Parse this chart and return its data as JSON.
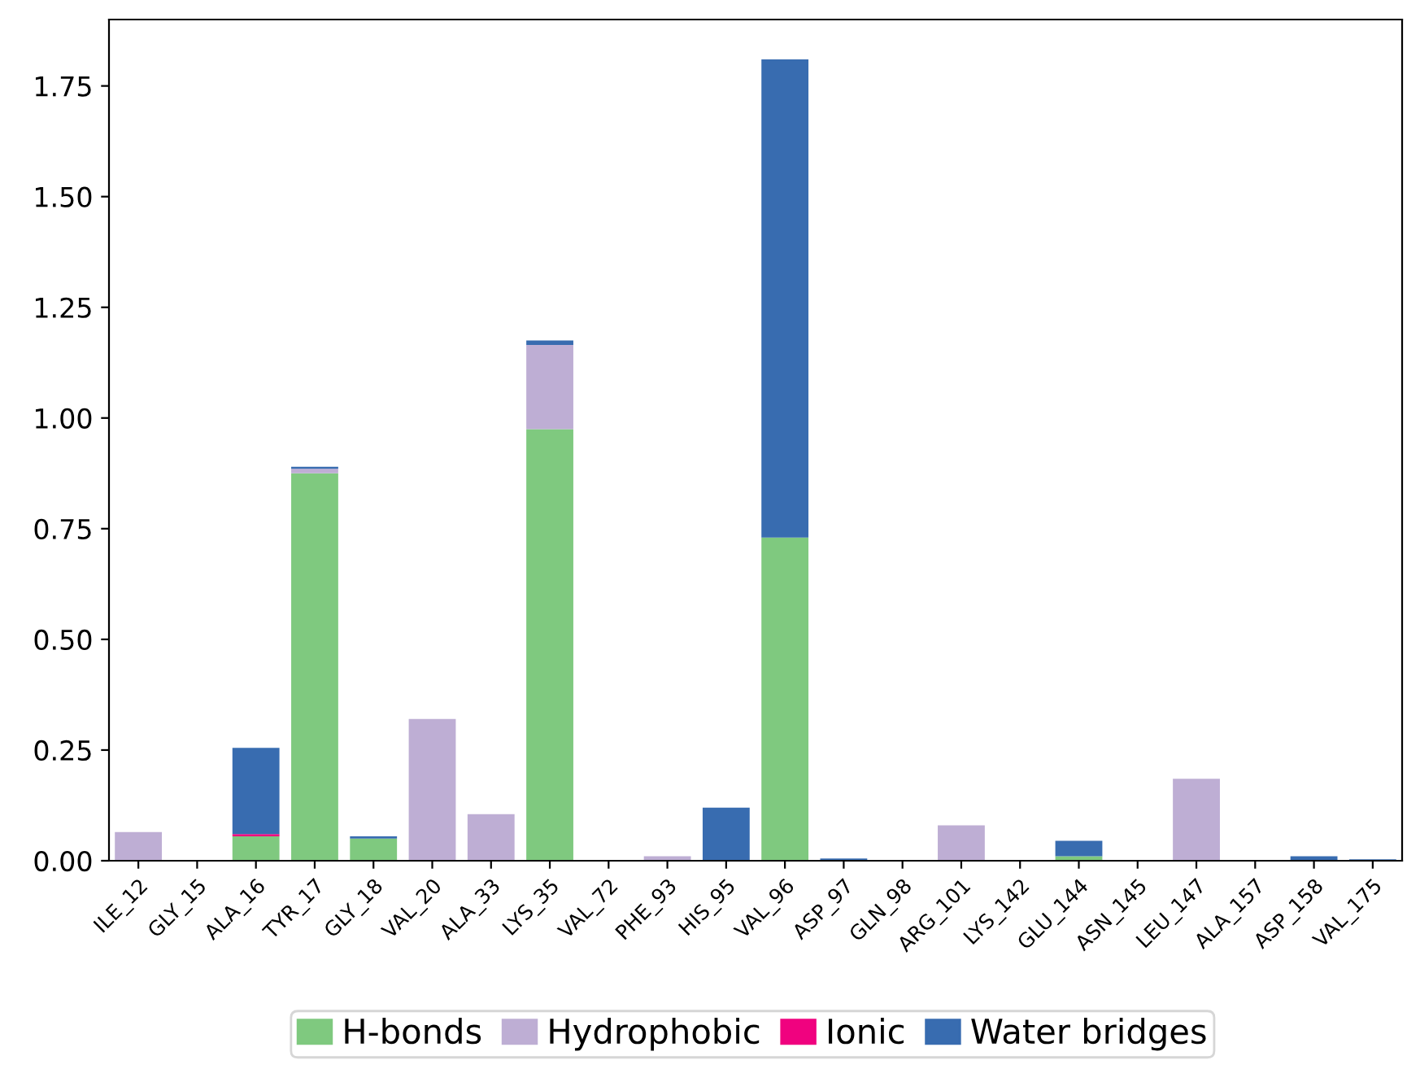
{
  "chart_data": {
    "type": "bar",
    "stacked": true,
    "categories": [
      "ILE_12",
      "GLY_15",
      "ALA_16",
      "TYR_17",
      "GLY_18",
      "VAL_20",
      "ALA_33",
      "LYS_35",
      "VAL_72",
      "PHE_93",
      "HIS_95",
      "VAL_96",
      "ASP_97",
      "GLN_98",
      "ARG_101",
      "LYS_142",
      "GLU_144",
      "ASN_145",
      "LEU_147",
      "ALA_157",
      "ASP_158",
      "VAL_175"
    ],
    "series": [
      {
        "name": "H-bonds",
        "color": "#7fc97f",
        "values": [
          0,
          0,
          0.055,
          0.875,
          0.05,
          0,
          0,
          0.975,
          0,
          0,
          0,
          0.73,
          0,
          0,
          0,
          0,
          0.01,
          0,
          0,
          0,
          0,
          0
        ]
      },
      {
        "name": "Hydrophobic",
        "color": "#beaed4",
        "values": [
          0.065,
          0,
          0,
          0.01,
          0,
          0.32,
          0.105,
          0.19,
          0,
          0.01,
          0,
          0,
          0,
          0,
          0.08,
          0,
          0,
          0,
          0.185,
          0,
          0,
          0
        ]
      },
      {
        "name": "Ionic",
        "color": "#f0027f",
        "values": [
          0,
          0,
          0.005,
          0,
          0,
          0,
          0,
          0,
          0,
          0,
          0,
          0,
          0,
          0,
          0,
          0,
          0,
          0,
          0,
          0,
          0,
          0
        ]
      },
      {
        "name": "Water bridges",
        "color": "#386cb0",
        "values": [
          0,
          0,
          0.195,
          0.005,
          0.005,
          0,
          0,
          0.01,
          0,
          0,
          0.12,
          1.08,
          0.005,
          0,
          0,
          0,
          0.035,
          0,
          0,
          0,
          0.01,
          0.003
        ]
      }
    ],
    "ylim": [
      0,
      1.9
    ],
    "yticks": [
      {
        "value": 0,
        "label": "0.00"
      },
      {
        "value": 0.25,
        "label": "0.25"
      },
      {
        "value": 0.5,
        "label": "0.50"
      },
      {
        "value": 0.75,
        "label": "0.75"
      },
      {
        "value": 1,
        "label": "1.00"
      },
      {
        "value": 1.25,
        "label": "1.25"
      },
      {
        "value": 1.5,
        "label": "1.50"
      },
      {
        "value": 1.75,
        "label": "1.75"
      }
    ],
    "grid": false,
    "legend": "bottom"
  }
}
